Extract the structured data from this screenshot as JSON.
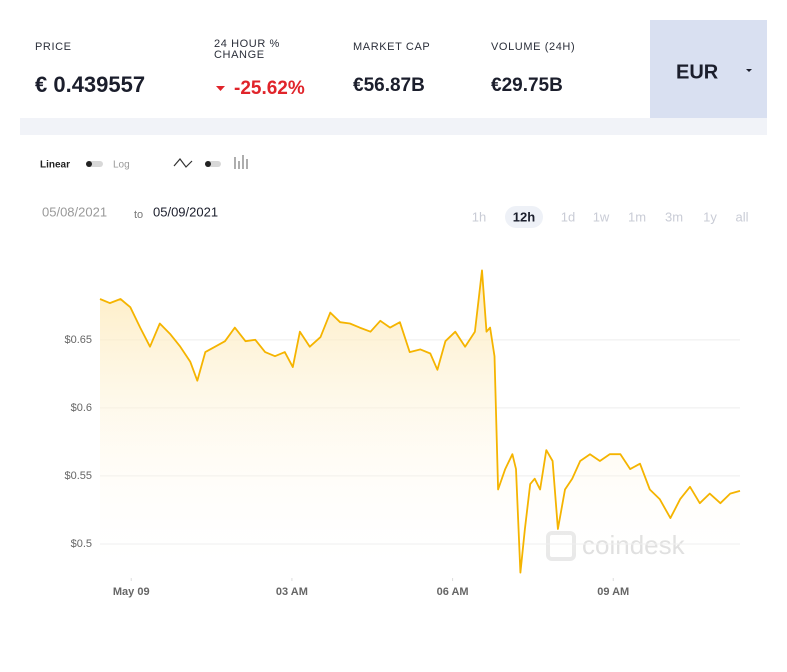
{
  "header": {
    "price_label": "PRICE",
    "price": "€ 0.439557",
    "change_label": "24 HOUR % CHANGE",
    "change": "-25.62%",
    "market_cap_label": "MARKET CAP",
    "market_cap": "€56.87B",
    "volume_label": "VOLUME (24H)",
    "volume": "€29.75B",
    "currency": "EUR"
  },
  "controls": {
    "linear": "Linear",
    "log": "Log",
    "date_from": "05/08/2021",
    "date_to_word": "to",
    "date_to": "05/09/2021",
    "ranges": [
      "1h",
      "12h",
      "1d",
      "1w",
      "1m",
      "3m",
      "1y",
      "all"
    ],
    "active_range": 1
  },
  "chart_data": {
    "type": "line",
    "watermark": "coindesk",
    "x": [
      "2021-05-08T23:25",
      "2021-05-08T23:36",
      "2021-05-08T23:48",
      "2021-05-08T23:59",
      "2021-05-09T00:10",
      "2021-05-09T00:21",
      "2021-05-09T00:32",
      "2021-05-09T00:44",
      "2021-05-09T00:55",
      "2021-05-09T01:06",
      "2021-05-09T01:14",
      "2021-05-09T01:23",
      "2021-05-09T01:34",
      "2021-05-09T01:45",
      "2021-05-09T01:56",
      "2021-05-09T02:08",
      "2021-05-09T02:19",
      "2021-05-09T02:30",
      "2021-05-09T02:41",
      "2021-05-09T02:52",
      "2021-05-09T03:01",
      "2021-05-09T03:09",
      "2021-05-09T03:20",
      "2021-05-09T03:32",
      "2021-05-09T03:43",
      "2021-05-09T03:54",
      "2021-05-09T04:05",
      "2021-05-09T04:16",
      "2021-05-09T04:28",
      "2021-05-09T04:39",
      "2021-05-09T04:50",
      "2021-05-09T05:01",
      "2021-05-09T05:12",
      "2021-05-09T05:24",
      "2021-05-09T05:35",
      "2021-05-09T05:43",
      "2021-05-09T05:52",
      "2021-05-09T06:03",
      "2021-05-09T06:14",
      "2021-05-09T06:25",
      "2021-05-09T06:33",
      "2021-05-09T06:38",
      "2021-05-09T06:42",
      "2021-05-09T06:47",
      "2021-05-09T06:51",
      "2021-05-09T06:59",
      "2021-05-09T07:07",
      "2021-05-09T07:11",
      "2021-05-09T07:16",
      "2021-05-09T07:21",
      "2021-05-09T07:27",
      "2021-05-09T07:32",
      "2021-05-09T07:38",
      "2021-05-09T07:45",
      "2021-05-09T07:52",
      "2021-05-09T07:58",
      "2021-05-09T08:06",
      "2021-05-09T08:14",
      "2021-05-09T08:23",
      "2021-05-09T08:34",
      "2021-05-09T08:45",
      "2021-05-09T08:56",
      "2021-05-09T09:08",
      "2021-05-09T09:19",
      "2021-05-09T09:30",
      "2021-05-09T09:41",
      "2021-05-09T09:52",
      "2021-05-09T10:04",
      "2021-05-09T10:15",
      "2021-05-09T10:26",
      "2021-05-09T10:37",
      "2021-05-09T10:48",
      "2021-05-09T11:00",
      "2021-05-09T11:11",
      "2021-05-09T11:22"
    ],
    "values": [
      0.68,
      0.677,
      0.68,
      0.674,
      0.659,
      0.645,
      0.662,
      0.654,
      0.645,
      0.634,
      0.62,
      0.641,
      0.645,
      0.649,
      0.659,
      0.649,
      0.65,
      0.641,
      0.638,
      0.641,
      0.63,
      0.656,
      0.645,
      0.652,
      0.67,
      0.663,
      0.662,
      0.659,
      0.656,
      0.664,
      0.659,
      0.663,
      0.641,
      0.643,
      0.64,
      0.628,
      0.649,
      0.656,
      0.645,
      0.656,
      0.701,
      0.656,
      0.659,
      0.638,
      0.54,
      0.555,
      0.566,
      0.555,
      0.479,
      0.511,
      0.544,
      0.548,
      0.54,
      0.569,
      0.561,
      0.511,
      0.54,
      0.548,
      0.561,
      0.566,
      0.561,
      0.566,
      0.566,
      0.555,
      0.559,
      0.54,
      0.533,
      0.519,
      0.533,
      0.542,
      0.53,
      0.537,
      0.53,
      0.537,
      0.539
    ],
    "color": "#f5b400",
    "xlim": [
      "2021-05-08T23:25",
      "2021-05-09T11:22"
    ],
    "xticks": [
      {
        "value": "2021-05-09T00:00",
        "label": "May 09"
      },
      {
        "value": "2021-05-09T03:00",
        "label": "03 AM"
      },
      {
        "value": "2021-05-09T06:00",
        "label": "06 AM"
      },
      {
        "value": "2021-05-09T09:00",
        "label": "09 AM"
      }
    ],
    "ylim": [
      0.475,
      0.705
    ],
    "yticks": [
      {
        "value": 0.5,
        "label": "$0.5"
      },
      {
        "value": 0.55,
        "label": "$0.55"
      },
      {
        "value": 0.6,
        "label": "$0.6"
      },
      {
        "value": 0.65,
        "label": "$0.65"
      }
    ],
    "grid": true
  }
}
